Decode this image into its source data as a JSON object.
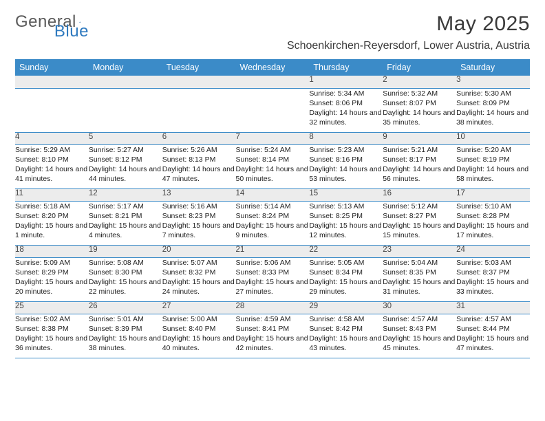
{
  "logo": {
    "text1": "General",
    "text2": "Blue"
  },
  "title": "May 2025",
  "location": "Schoenkirchen-Reyersdorf, Lower Austria, Austria",
  "colors": {
    "header_bg": "#3b8bc8",
    "header_fg": "#ffffff",
    "daynum_bg": "#ececec",
    "cell_border": "#3b8bc8",
    "text": "#222222",
    "logo_gray": "#5a5a5a",
    "logo_blue": "#2f7abf"
  },
  "weekdays": [
    "Sunday",
    "Monday",
    "Tuesday",
    "Wednesday",
    "Thursday",
    "Friday",
    "Saturday"
  ],
  "weeks": [
    [
      null,
      null,
      null,
      null,
      {
        "day": "1",
        "sunrise": "5:34 AM",
        "sunset": "8:06 PM",
        "daylight": "14 hours and 32 minutes."
      },
      {
        "day": "2",
        "sunrise": "5:32 AM",
        "sunset": "8:07 PM",
        "daylight": "14 hours and 35 minutes."
      },
      {
        "day": "3",
        "sunrise": "5:30 AM",
        "sunset": "8:09 PM",
        "daylight": "14 hours and 38 minutes."
      }
    ],
    [
      {
        "day": "4",
        "sunrise": "5:29 AM",
        "sunset": "8:10 PM",
        "daylight": "14 hours and 41 minutes."
      },
      {
        "day": "5",
        "sunrise": "5:27 AM",
        "sunset": "8:12 PM",
        "daylight": "14 hours and 44 minutes."
      },
      {
        "day": "6",
        "sunrise": "5:26 AM",
        "sunset": "8:13 PM",
        "daylight": "14 hours and 47 minutes."
      },
      {
        "day": "7",
        "sunrise": "5:24 AM",
        "sunset": "8:14 PM",
        "daylight": "14 hours and 50 minutes."
      },
      {
        "day": "8",
        "sunrise": "5:23 AM",
        "sunset": "8:16 PM",
        "daylight": "14 hours and 53 minutes."
      },
      {
        "day": "9",
        "sunrise": "5:21 AM",
        "sunset": "8:17 PM",
        "daylight": "14 hours and 56 minutes."
      },
      {
        "day": "10",
        "sunrise": "5:20 AM",
        "sunset": "8:19 PM",
        "daylight": "14 hours and 58 minutes."
      }
    ],
    [
      {
        "day": "11",
        "sunrise": "5:18 AM",
        "sunset": "8:20 PM",
        "daylight": "15 hours and 1 minute."
      },
      {
        "day": "12",
        "sunrise": "5:17 AM",
        "sunset": "8:21 PM",
        "daylight": "15 hours and 4 minutes."
      },
      {
        "day": "13",
        "sunrise": "5:16 AM",
        "sunset": "8:23 PM",
        "daylight": "15 hours and 7 minutes."
      },
      {
        "day": "14",
        "sunrise": "5:14 AM",
        "sunset": "8:24 PM",
        "daylight": "15 hours and 9 minutes."
      },
      {
        "day": "15",
        "sunrise": "5:13 AM",
        "sunset": "8:25 PM",
        "daylight": "15 hours and 12 minutes."
      },
      {
        "day": "16",
        "sunrise": "5:12 AM",
        "sunset": "8:27 PM",
        "daylight": "15 hours and 15 minutes."
      },
      {
        "day": "17",
        "sunrise": "5:10 AM",
        "sunset": "8:28 PM",
        "daylight": "15 hours and 17 minutes."
      }
    ],
    [
      {
        "day": "18",
        "sunrise": "5:09 AM",
        "sunset": "8:29 PM",
        "daylight": "15 hours and 20 minutes."
      },
      {
        "day": "19",
        "sunrise": "5:08 AM",
        "sunset": "8:30 PM",
        "daylight": "15 hours and 22 minutes."
      },
      {
        "day": "20",
        "sunrise": "5:07 AM",
        "sunset": "8:32 PM",
        "daylight": "15 hours and 24 minutes."
      },
      {
        "day": "21",
        "sunrise": "5:06 AM",
        "sunset": "8:33 PM",
        "daylight": "15 hours and 27 minutes."
      },
      {
        "day": "22",
        "sunrise": "5:05 AM",
        "sunset": "8:34 PM",
        "daylight": "15 hours and 29 minutes."
      },
      {
        "day": "23",
        "sunrise": "5:04 AM",
        "sunset": "8:35 PM",
        "daylight": "15 hours and 31 minutes."
      },
      {
        "day": "24",
        "sunrise": "5:03 AM",
        "sunset": "8:37 PM",
        "daylight": "15 hours and 33 minutes."
      }
    ],
    [
      {
        "day": "25",
        "sunrise": "5:02 AM",
        "sunset": "8:38 PM",
        "daylight": "15 hours and 36 minutes."
      },
      {
        "day": "26",
        "sunrise": "5:01 AM",
        "sunset": "8:39 PM",
        "daylight": "15 hours and 38 minutes."
      },
      {
        "day": "27",
        "sunrise": "5:00 AM",
        "sunset": "8:40 PM",
        "daylight": "15 hours and 40 minutes."
      },
      {
        "day": "28",
        "sunrise": "4:59 AM",
        "sunset": "8:41 PM",
        "daylight": "15 hours and 42 minutes."
      },
      {
        "day": "29",
        "sunrise": "4:58 AM",
        "sunset": "8:42 PM",
        "daylight": "15 hours and 43 minutes."
      },
      {
        "day": "30",
        "sunrise": "4:57 AM",
        "sunset": "8:43 PM",
        "daylight": "15 hours and 45 minutes."
      },
      {
        "day": "31",
        "sunrise": "4:57 AM",
        "sunset": "8:44 PM",
        "daylight": "15 hours and 47 minutes."
      }
    ]
  ],
  "labels": {
    "sunrise": "Sunrise:",
    "sunset": "Sunset:",
    "daylight": "Daylight:"
  }
}
